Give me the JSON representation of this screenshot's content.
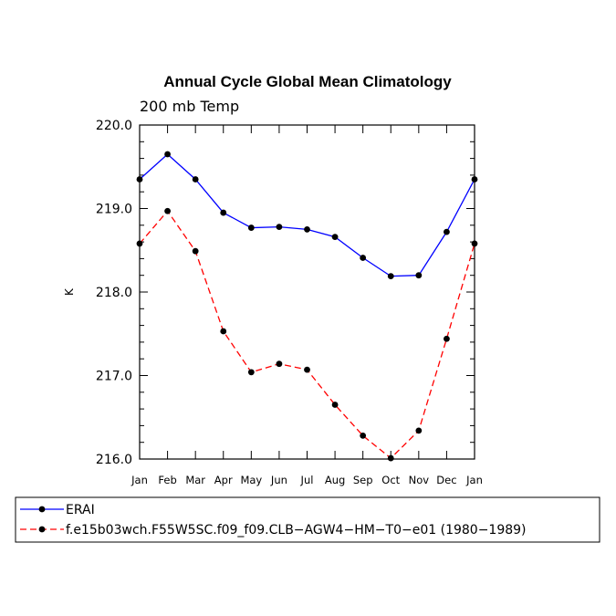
{
  "chart_data": {
    "type": "line",
    "title": "Annual Cycle Global Mean Climatology",
    "subtitle": "200 mb Temp",
    "ylabel": "K",
    "xlabel": "",
    "categories": [
      "Jan",
      "Feb",
      "Mar",
      "Apr",
      "May",
      "Jun",
      "Jul",
      "Aug",
      "Sep",
      "Oct",
      "Nov",
      "Dec",
      "Jan"
    ],
    "ylim": [
      216.0,
      220.0
    ],
    "yticks": [
      "216.0",
      "217.0",
      "218.0",
      "219.0",
      "220.0"
    ],
    "grid": false,
    "legend_position": "bottom",
    "series": [
      {
        "name": "ERAI",
        "color": "#0000ff",
        "dash": "solid",
        "values": [
          219.35,
          219.65,
          219.35,
          218.95,
          218.77,
          218.78,
          218.75,
          218.66,
          218.41,
          218.19,
          218.2,
          218.72,
          219.35
        ]
      },
      {
        "name": "f.e15b03wch.F55W5SC.f09_f09.CLB−AGW4−HM−T0−e01 (1980−1989)",
        "color": "#ff0000",
        "dash": "dashed",
        "values": [
          218.58,
          218.97,
          218.49,
          217.53,
          217.04,
          217.14,
          217.07,
          216.65,
          216.28,
          216.01,
          216.34,
          217.44,
          218.58
        ]
      }
    ]
  }
}
